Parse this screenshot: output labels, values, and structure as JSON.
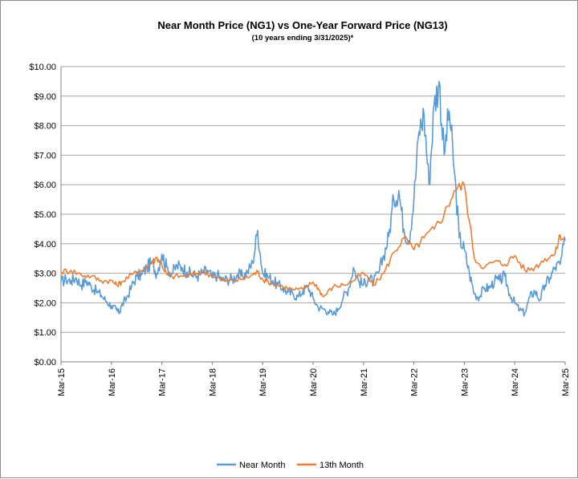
{
  "chart_data": {
    "type": "line",
    "title": "Near Month Price (NG1) vs One-Year Forward Price (NG13)",
    "subtitle": "(10 years ending  3/31/2025)*",
    "xlabel": "",
    "ylabel": "",
    "ylim": [
      0,
      10
    ],
    "y_ticks": [
      "$0.00",
      "$1.00",
      "$2.00",
      "$3.00",
      "$4.00",
      "$5.00",
      "$6.00",
      "$7.00",
      "$8.00",
      "$9.00",
      "$10.00"
    ],
    "x_ticks": [
      "Mar-15",
      "Mar-16",
      "Mar-17",
      "Mar-18",
      "Mar-19",
      "Mar-20",
      "Mar-21",
      "Mar-22",
      "Mar-23",
      "Mar-24",
      "Mar-25"
    ],
    "xlim": [
      2015.0,
      2025.0
    ],
    "grid": "horizontal",
    "legend_position": "bottom",
    "series": [
      {
        "name": "Near Month",
        "color": "#5b9bd5",
        "x": [
          2015.0,
          2015.1,
          2015.2,
          2015.3,
          2015.4,
          2015.5,
          2015.6,
          2015.7,
          2015.8,
          2015.9,
          2016.0,
          2016.1,
          2016.15,
          2016.2,
          2016.3,
          2016.4,
          2016.5,
          2016.6,
          2016.7,
          2016.8,
          2016.9,
          2017.0,
          2017.1,
          2017.2,
          2017.3,
          2017.4,
          2017.5,
          2017.6,
          2017.7,
          2017.8,
          2017.9,
          2018.0,
          2018.1,
          2018.2,
          2018.3,
          2018.4,
          2018.5,
          2018.6,
          2018.7,
          2018.8,
          2018.9,
          2019.0,
          2019.1,
          2019.2,
          2019.3,
          2019.4,
          2019.5,
          2019.6,
          2019.7,
          2019.8,
          2019.9,
          2020.0,
          2020.1,
          2020.2,
          2020.3,
          2020.4,
          2020.5,
          2020.6,
          2020.7,
          2020.8,
          2020.9,
          2021.0,
          2021.1,
          2021.2,
          2021.3,
          2021.4,
          2021.5,
          2021.6,
          2021.7,
          2021.8,
          2021.9,
          2022.0,
          2022.1,
          2022.2,
          2022.3,
          2022.4,
          2022.5,
          2022.6,
          2022.7,
          2022.8,
          2022.9,
          2023.0,
          2023.1,
          2023.2,
          2023.3,
          2023.4,
          2023.5,
          2023.6,
          2023.7,
          2023.8,
          2023.9,
          2024.0,
          2024.1,
          2024.2,
          2024.3,
          2024.4,
          2024.5,
          2024.6,
          2024.7,
          2024.8,
          2024.9,
          2025.0
        ],
        "y": [
          2.7,
          2.8,
          2.75,
          2.85,
          2.6,
          2.75,
          2.55,
          2.4,
          2.25,
          2.05,
          1.9,
          1.75,
          1.65,
          1.9,
          2.15,
          2.55,
          2.9,
          2.95,
          3.2,
          3.35,
          3.0,
          3.65,
          3.2,
          3.0,
          3.25,
          3.2,
          3.05,
          2.95,
          2.9,
          3.0,
          3.1,
          2.85,
          2.95,
          2.75,
          2.8,
          2.8,
          2.95,
          2.9,
          3.05,
          3.35,
          4.45,
          3.0,
          2.9,
          2.75,
          2.6,
          2.5,
          2.35,
          2.3,
          2.2,
          2.4,
          2.55,
          2.15,
          1.85,
          1.8,
          1.7,
          1.6,
          1.8,
          2.2,
          2.45,
          3.2,
          2.75,
          2.6,
          2.85,
          2.7,
          3.0,
          3.6,
          4.25,
          5.5,
          5.8,
          4.5,
          4.1,
          5.5,
          7.8,
          8.4,
          6.0,
          8.7,
          9.5,
          7.0,
          8.5,
          6.5,
          4.2,
          3.8,
          3.0,
          2.3,
          2.2,
          2.5,
          2.5,
          2.75,
          2.75,
          2.9,
          2.3,
          2.0,
          1.75,
          1.65,
          2.2,
          2.4,
          2.1,
          2.6,
          2.85,
          3.2,
          3.3,
          4.1
        ]
      },
      {
        "name": "13th Month",
        "color": "#ed7d31",
        "x": [
          2015.0,
          2015.2,
          2015.4,
          2015.6,
          2015.8,
          2016.0,
          2016.1,
          2016.2,
          2016.4,
          2016.6,
          2016.8,
          2016.9,
          2017.0,
          2017.1,
          2017.2,
          2017.4,
          2017.6,
          2017.8,
          2018.0,
          2018.2,
          2018.4,
          2018.6,
          2018.8,
          2018.9,
          2019.0,
          2019.2,
          2019.4,
          2019.6,
          2019.8,
          2020.0,
          2020.1,
          2020.2,
          2020.4,
          2020.6,
          2020.8,
          2021.0,
          2021.2,
          2021.4,
          2021.6,
          2021.8,
          2022.0,
          2022.2,
          2022.4,
          2022.6,
          2022.8,
          2023.0,
          2023.2,
          2023.4,
          2023.6,
          2023.8,
          2024.0,
          2024.2,
          2024.4,
          2024.6,
          2024.8,
          2024.9,
          2025.0
        ],
        "y": [
          3.05,
          3.1,
          2.95,
          2.9,
          2.75,
          2.75,
          2.6,
          2.7,
          2.95,
          3.1,
          3.35,
          3.55,
          3.3,
          2.95,
          2.9,
          2.9,
          2.95,
          3.05,
          2.95,
          2.75,
          2.75,
          2.8,
          2.95,
          3.05,
          2.8,
          2.65,
          2.55,
          2.45,
          2.45,
          2.7,
          2.5,
          2.2,
          2.55,
          2.6,
          2.75,
          3.0,
          2.6,
          3.0,
          3.7,
          4.2,
          3.8,
          4.2,
          4.5,
          5.0,
          5.8,
          6.0,
          3.5,
          3.2,
          3.4,
          3.3,
          3.6,
          3.1,
          3.2,
          3.5,
          3.65,
          4.3,
          4.1
        ]
      }
    ]
  }
}
